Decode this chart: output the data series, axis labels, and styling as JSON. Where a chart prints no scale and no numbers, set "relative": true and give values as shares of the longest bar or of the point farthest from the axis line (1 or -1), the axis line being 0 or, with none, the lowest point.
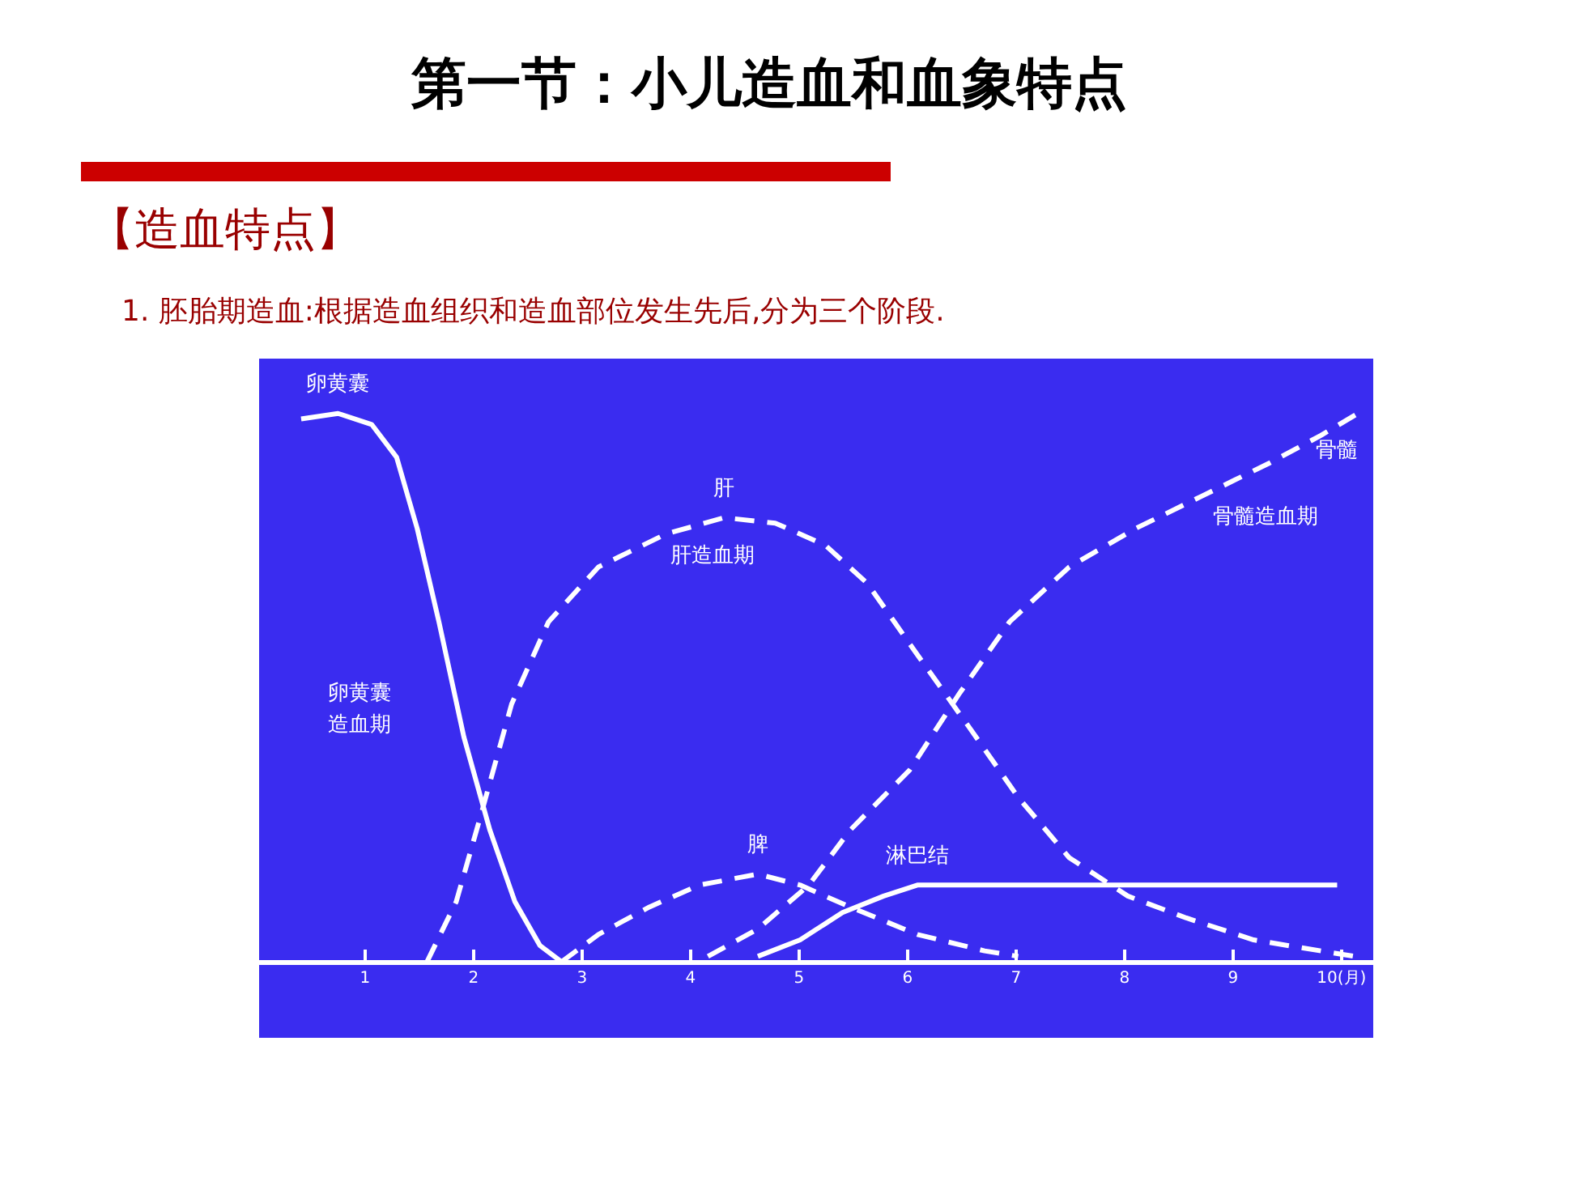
{
  "chart_data": {
    "type": "line",
    "title": "第一节：小儿造血和血象特点",
    "subtitle": "【造血特点】",
    "annotations": [
      "1. 胚胎期造血:根据造血组织和造血部位发生先后,分为三个阶段.",
      "卵黄囊造血期",
      "肝造血期",
      "骨髓造血期"
    ],
    "relative": true,
    "xlim": [
      0,
      10.3
    ],
    "xticks": [
      1,
      2,
      3,
      4,
      5,
      6,
      7,
      8,
      9,
      {
        "value": 10,
        "label": "10(月)"
      }
    ],
    "grid": false,
    "marker": "none",
    "series": [
      {
        "name": "卵黄囊",
        "color": "#ffffff",
        "line_style": "solid",
        "x": [
          0.41,
          0.75,
          1.06,
          1.29,
          1.48,
          1.68,
          1.91,
          2.15,
          2.38,
          2.61,
          2.81
        ],
        "values": [
          0.99,
          1.0,
          0.98,
          0.92,
          0.79,
          0.62,
          0.41,
          0.24,
          0.11,
          0.03,
          0
        ]
      },
      {
        "name": "肝",
        "color": "#ffffff",
        "line_style": "dashed",
        "x": [
          1.57,
          1.84,
          2.07,
          2.35,
          2.69,
          3.15,
          3.77,
          4.31,
          4.78,
          5.24,
          5.63,
          6.09,
          6.56,
          7.02,
          7.49,
          8.03,
          8.57,
          9.19,
          10.12
        ],
        "values": [
          0,
          0.11,
          0.27,
          0.47,
          0.62,
          0.72,
          0.78,
          0.81,
          0.8,
          0.76,
          0.69,
          0.56,
          0.43,
          0.3,
          0.19,
          0.12,
          0.08,
          0.04,
          0.01
        ]
      },
      {
        "name": "脾",
        "color": "#ffffff",
        "line_style": "dashed",
        "x": [
          2.81,
          3.15,
          3.62,
          4.08,
          4.62,
          5.01,
          5.47,
          6.09,
          6.71,
          7.02
        ],
        "values": [
          0,
          0.05,
          0.1,
          0.14,
          0.16,
          0.14,
          0.1,
          0.05,
          0.02,
          0.01
        ]
      },
      {
        "name": "骨髓",
        "color": "#ffffff",
        "line_style": "dashed",
        "x": [
          4.16,
          4.62,
          5.09,
          5.47,
          6.02,
          6.48,
          6.94,
          7.49,
          8.1,
          8.72,
          9.34,
          9.81,
          10.15
        ],
        "values": [
          0.01,
          0.06,
          0.14,
          0.24,
          0.35,
          0.49,
          0.62,
          0.72,
          0.79,
          0.85,
          0.91,
          0.96,
          1.0
        ]
      },
      {
        "name": "淋巴结",
        "color": "#ffffff",
        "line_style": "solid",
        "x": [
          4.62,
          5.01,
          5.4,
          5.78,
          6.09,
          6.71,
          7.49,
          8.26,
          9.03,
          9.65,
          9.96
        ],
        "values": [
          0.01,
          0.04,
          0.09,
          0.12,
          0.14,
          0.14,
          0.14,
          0.14,
          0.14,
          0.14,
          0.14
        ]
      }
    ]
  }
}
